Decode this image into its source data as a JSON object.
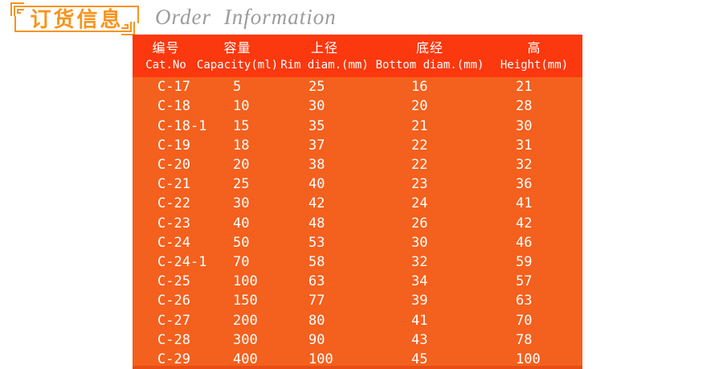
{
  "header": {
    "title_zh": "订货信息",
    "title_en": "Order Information"
  },
  "colors": {
    "title_accent": "#f7941e",
    "title_en_gray": "#9c9c9c",
    "table_header_bg": "#fb380e",
    "table_body_bg": "#f4601d",
    "table_text": "#ffffff"
  },
  "table": {
    "columns": [
      {
        "zh": "编号",
        "en": "Cat.No"
      },
      {
        "zh": "容量",
        "en": "Capacity(ml)"
      },
      {
        "zh": "上径",
        "en": "Rim diam.(mm)"
      },
      {
        "zh": "底经",
        "en": "Bottom diam.(mm)"
      },
      {
        "zh": "高",
        "en": "Height(mm)"
      }
    ],
    "rows": [
      [
        "C-17",
        "5",
        "25",
        "16",
        "21"
      ],
      [
        "C-18",
        "10",
        "30",
        "20",
        "28"
      ],
      [
        "C-18-1",
        "15",
        "35",
        "21",
        "30"
      ],
      [
        "C-19",
        "18",
        "37",
        "22",
        "31"
      ],
      [
        "C-20",
        "20",
        "38",
        "22",
        "32"
      ],
      [
        "C-21",
        "25",
        "40",
        "23",
        "36"
      ],
      [
        "C-22",
        "30",
        "42",
        "24",
        "41"
      ],
      [
        "C-23",
        "40",
        "48",
        "26",
        "42"
      ],
      [
        "C-24",
        "50",
        "53",
        "30",
        "46"
      ],
      [
        "C-24-1",
        "70",
        "58",
        "32",
        "59"
      ],
      [
        "C-25",
        "100",
        "63",
        "34",
        "57"
      ],
      [
        "C-26",
        "150",
        "77",
        "39",
        "63"
      ],
      [
        "C-27",
        "200",
        "80",
        "41",
        "70"
      ],
      [
        "C-28",
        "300",
        "90",
        "43",
        "78"
      ],
      [
        "C-29",
        "400",
        "100",
        "45",
        "100"
      ]
    ]
  }
}
